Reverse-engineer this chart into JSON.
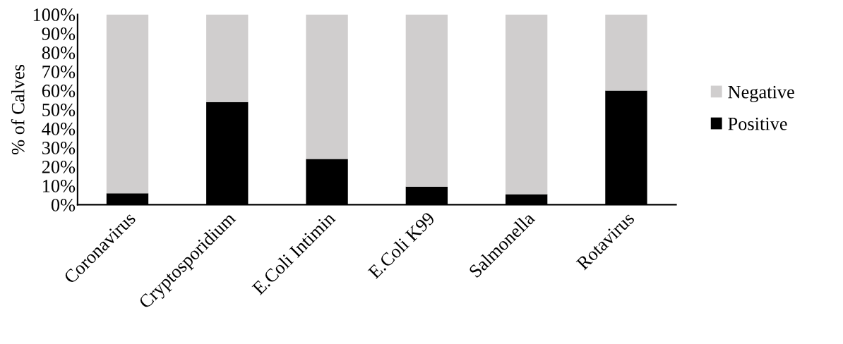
{
  "chart_data": {
    "type": "bar",
    "stacked": true,
    "ylabel": "% of Calves",
    "categories": [
      "Coronavirus",
      "Cryptosporidium",
      "E.Coli Intimin",
      "E.Coli K99",
      "Salmonella",
      "Rotavirus"
    ],
    "series": [
      {
        "name": "Positive",
        "color": "#000000",
        "values": [
          6,
          54,
          24,
          9.5,
          5.5,
          60
        ]
      },
      {
        "name": "Negative",
        "color": "#d0cece",
        "values": [
          94,
          46,
          76,
          90.5,
          94.5,
          40
        ]
      }
    ],
    "ylim": [
      0,
      100
    ],
    "yticks": [
      {
        "value": 0,
        "label": "0%"
      },
      {
        "value": 10,
        "label": "10%"
      },
      {
        "value": 20,
        "label": "20%"
      },
      {
        "value": 30,
        "label": "30%"
      },
      {
        "value": 40,
        "label": "40%"
      },
      {
        "value": 50,
        "label": "50%"
      },
      {
        "value": 60,
        "label": "60%"
      },
      {
        "value": 70,
        "label": "70%"
      },
      {
        "value": 80,
        "label": "80%"
      },
      {
        "value": 90,
        "label": "90%"
      },
      {
        "value": 100,
        "label": "100%"
      }
    ],
    "grid": false,
    "legend": "right"
  }
}
